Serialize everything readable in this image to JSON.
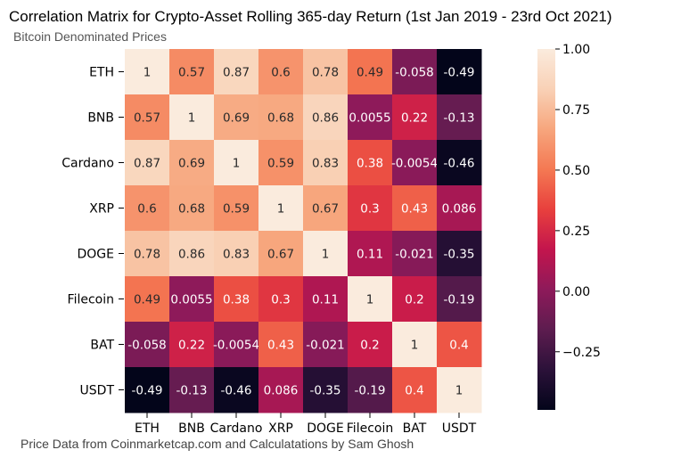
{
  "title": "Correlation Matrix for Crypto-Asset Rolling 365-day Return (1st Jan 2019 - 23rd Oct 2021)",
  "subtitle": "Bitcoin Denominated Prices",
  "footer": "Price Data from Coinmarketcap.com and Calculatations by Sam Ghosh",
  "colorscale": {
    "stops": [
      "#03051a",
      "#2b1139",
      "#5d1c4f",
      "#8e1a5a",
      "#c3154d",
      "#e8403d",
      "#f47953",
      "#f7a67d",
      "#f9d1b6",
      "#faebdd"
    ],
    "min": -0.49,
    "max": 1.0
  },
  "chart_data": {
    "type": "heatmap",
    "title": "Correlation Matrix for Crypto-Asset Rolling 365-day Return (1st Jan 2019 - 23rd Oct 2021)",
    "subtitle": "Bitcoin Denominated Prices",
    "row_labels": [
      "ETH",
      "BNB",
      "Cardano",
      "XRP",
      "DOGE",
      "Filecoin",
      "BAT",
      "USDT"
    ],
    "col_labels": [
      "ETH",
      "BNB",
      "Cardano",
      "XRP",
      "DOGE",
      "Filecoin",
      "BAT",
      "USDT"
    ],
    "values": [
      [
        1,
        0.57,
        0.87,
        0.6,
        0.78,
        0.49,
        -0.058,
        -0.49
      ],
      [
        0.57,
        1,
        0.69,
        0.68,
        0.86,
        0.0055,
        0.22,
        -0.13
      ],
      [
        0.87,
        0.69,
        1,
        0.59,
        0.83,
        0.38,
        -0.0054,
        -0.46
      ],
      [
        0.6,
        0.68,
        0.59,
        1,
        0.67,
        0.3,
        0.43,
        0.086
      ],
      [
        0.78,
        0.86,
        0.83,
        0.67,
        1,
        0.11,
        -0.021,
        -0.35
      ],
      [
        0.49,
        0.0055,
        0.38,
        0.3,
        0.11,
        1,
        0.2,
        -0.19
      ],
      [
        -0.058,
        0.22,
        -0.0054,
        0.43,
        -0.021,
        0.2,
        1,
        0.4
      ],
      [
        -0.49,
        -0.13,
        -0.46,
        0.086,
        -0.35,
        -0.19,
        0.4,
        1
      ]
    ],
    "cell_labels": [
      [
        "1",
        "0.57",
        "0.87",
        "0.6",
        "0.78",
        "0.49",
        "-0.058",
        "-0.49"
      ],
      [
        "0.57",
        "1",
        "0.69",
        "0.68",
        "0.86",
        "0.0055",
        "0.22",
        "-0.13"
      ],
      [
        "0.87",
        "0.69",
        "1",
        "0.59",
        "0.83",
        "0.38",
        "-0.0054",
        "-0.46"
      ],
      [
        "0.6",
        "0.68",
        "0.59",
        "1",
        "0.67",
        "0.3",
        "0.43",
        "0.086"
      ],
      [
        "0.78",
        "0.86",
        "0.83",
        "0.67",
        "1",
        "0.11",
        "-0.021",
        "-0.35"
      ],
      [
        "0.49",
        "0.0055",
        "0.38",
        "0.3",
        "0.11",
        "1",
        "0.2",
        "-0.19"
      ],
      [
        "-0.058",
        "0.22",
        "-0.0054",
        "0.43",
        "-0.021",
        "0.2",
        "1",
        "0.4"
      ],
      [
        "-0.49",
        "-0.13",
        "-0.46",
        "0.086",
        "-0.35",
        "-0.19",
        "0.4",
        "1"
      ]
    ],
    "colorbar": {
      "range": [
        -0.49,
        1.0
      ],
      "ticks": [
        1.0,
        0.75,
        0.5,
        0.25,
        0.0,
        -0.25
      ],
      "tick_labels": [
        "1.00",
        "0.75",
        "0.50",
        "0.25",
        "0.00",
        "−0.25"
      ]
    },
    "xlabel": "",
    "ylabel": ""
  }
}
